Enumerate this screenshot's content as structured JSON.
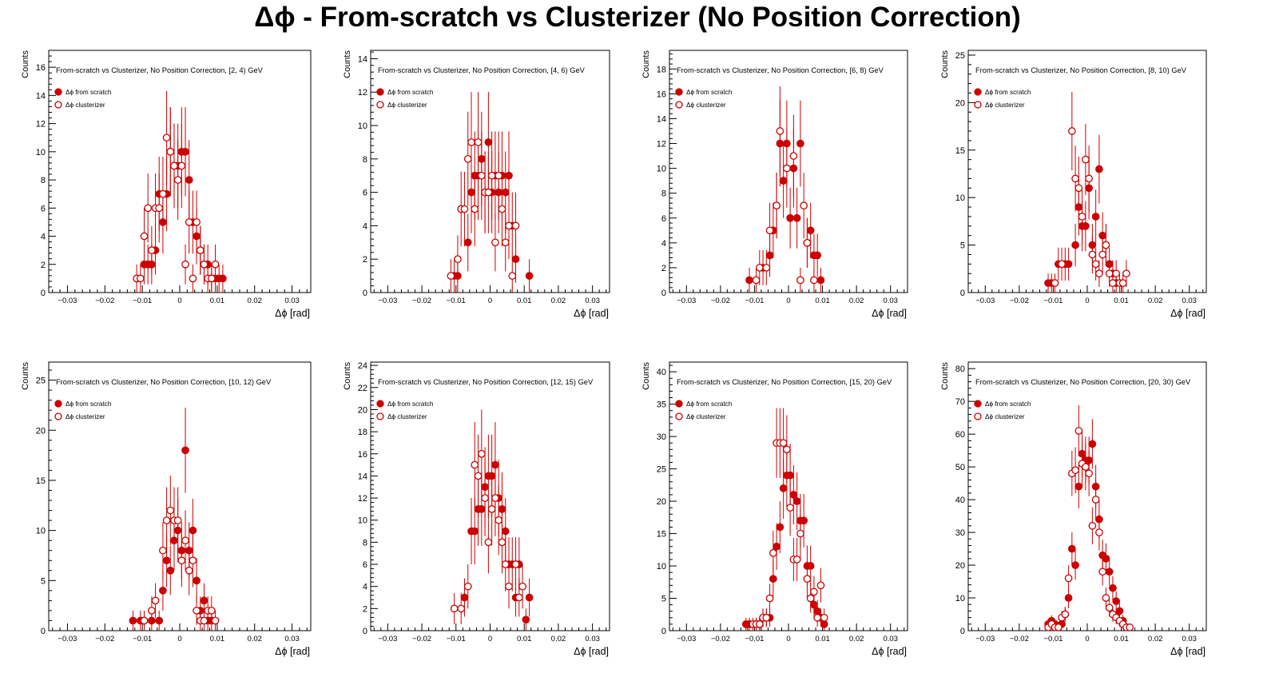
{
  "figure": {
    "title": "Δϕ  -  From-scratch vs Clusterizer  (No Position Correction)"
  },
  "chart_data": [
    {
      "type": "scatter",
      "title": "From-scratch vs Clusterizer, No Position Correction, [2, 4) GeV",
      "xlabel": "Δϕ  [rad]",
      "ylabel": "Counts",
      "xlim": [
        -0.035,
        0.035
      ],
      "ylim": [
        0,
        17.2
      ],
      "xticks": [
        -0.03,
        -0.02,
        -0.01,
        0,
        0.01,
        0.02,
        0.03
      ],
      "yticks": [
        0,
        2,
        4,
        6,
        8,
        10,
        12,
        14,
        16
      ],
      "legend": "top-left",
      "series": [
        {
          "name": "Δϕ  from scratch",
          "marker": "filled",
          "color": "#cc0000",
          "x": [
            -0.0095,
            -0.0085,
            -0.0075,
            -0.0065,
            -0.0055,
            -0.0045,
            -0.0035,
            -0.0025,
            -0.0015,
            -0.0005,
            0.0005,
            0.0015,
            0.0025,
            0.0035,
            0.0045,
            0.0055,
            0.0065,
            0.0075,
            0.0085,
            0.0095,
            0.0105,
            0.0115
          ],
          "y": [
            2,
            2,
            2,
            3,
            7,
            5,
            7,
            10,
            9,
            9,
            10,
            10,
            8,
            5,
            4,
            3,
            2,
            2,
            1,
            1,
            1,
            1
          ]
        },
        {
          "name": "Δϕ  clusterizer",
          "marker": "open",
          "color": "#cc0000",
          "x": [
            -0.0115,
            -0.0105,
            -0.0095,
            -0.0085,
            -0.0075,
            -0.0065,
            -0.0055,
            -0.0045,
            -0.0035,
            -0.0025,
            -0.0015,
            -0.0005,
            0.0005,
            0.0015,
            0.0025,
            0.0035,
            0.0045,
            0.0055,
            0.0065,
            0.0075,
            0.0085,
            0.0095
          ],
          "y": [
            1,
            1,
            4,
            6,
            3,
            6,
            6,
            7,
            11,
            10,
            9,
            8,
            9,
            2,
            5,
            1,
            5,
            3,
            2,
            1,
            1,
            2
          ]
        }
      ]
    },
    {
      "type": "scatter",
      "title": "From-scratch vs Clusterizer, No Position Correction, [4, 6) GeV",
      "xlabel": "Δϕ  [rad]",
      "ylabel": "Counts",
      "xlim": [
        -0.035,
        0.035
      ],
      "ylim": [
        0,
        14.5
      ],
      "xticks": [
        -0.03,
        -0.02,
        -0.01,
        0,
        0.01,
        0.02,
        0.03
      ],
      "yticks": [
        0,
        2,
        4,
        6,
        8,
        10,
        12,
        14
      ],
      "legend": "top-left",
      "series": [
        {
          "name": "Δϕ  from scratch",
          "marker": "filled",
          "color": "#cc0000",
          "x": [
            -0.0105,
            -0.0095,
            -0.0065,
            -0.0055,
            -0.0045,
            -0.0035,
            -0.0025,
            -0.0015,
            -0.0005,
            0.0005,
            0.0015,
            0.0025,
            0.0035,
            0.0045,
            0.0055,
            0.0065,
            0.0075,
            0.0115
          ],
          "y": [
            1,
            1,
            3,
            6,
            7,
            7,
            8,
            6,
            9,
            6,
            7,
            6,
            7,
            6,
            7,
            4,
            2,
            1
          ]
        },
        {
          "name": "Δϕ  clusterizer",
          "marker": "open",
          "color": "#cc0000",
          "x": [
            -0.0115,
            -0.0095,
            -0.0085,
            -0.0075,
            -0.0065,
            -0.0055,
            -0.0045,
            -0.0035,
            -0.0025,
            -0.0015,
            -0.0005,
            0.0005,
            0.0015,
            0.0025,
            0.0035,
            0.0045,
            0.0055,
            0.0065,
            0.0075
          ],
          "y": [
            1,
            2,
            5,
            5,
            8,
            9,
            5,
            9,
            7,
            6,
            6,
            7,
            3,
            7,
            5,
            3,
            4,
            1,
            4
          ]
        }
      ]
    },
    {
      "type": "scatter",
      "title": "From-scratch vs Clusterizer, No Position Correction, [6, 8) GeV",
      "xlabel": "Δϕ  [rad]",
      "ylabel": "Counts",
      "xlim": [
        -0.035,
        0.035
      ],
      "ylim": [
        0,
        19.5
      ],
      "xticks": [
        -0.03,
        -0.02,
        -0.01,
        0,
        0.01,
        0.02,
        0.03
      ],
      "yticks": [
        0,
        2,
        4,
        6,
        8,
        10,
        12,
        14,
        16,
        18
      ],
      "legend": "top-left",
      "series": [
        {
          "name": "Δϕ  from scratch",
          "marker": "filled",
          "color": "#cc0000",
          "x": [
            -0.0115,
            -0.0075,
            -0.0055,
            -0.0045,
            -0.0035,
            -0.0025,
            -0.0015,
            -0.0005,
            0.0005,
            0.0015,
            0.0025,
            0.0035,
            0.0055,
            0.0065,
            0.0075,
            0.0085,
            0.0095
          ],
          "y": [
            1,
            2,
            3,
            5,
            7,
            12,
            9,
            12,
            6,
            10,
            6,
            12,
            4,
            5,
            3,
            3,
            1
          ]
        },
        {
          "name": "Δϕ  clusterizer",
          "marker": "open",
          "color": "#cc0000",
          "x": [
            -0.0095,
            -0.0085,
            -0.0065,
            -0.0055,
            -0.0035,
            -0.0025,
            -0.0005,
            0.0015,
            0.0035,
            0.0045,
            0.0055,
            0.0075
          ],
          "y": [
            1,
            2,
            2,
            5,
            7,
            13,
            10,
            11,
            1,
            7,
            4,
            1
          ]
        }
      ]
    },
    {
      "type": "scatter",
      "title": "From-scratch vs Clusterizer, No Position Correction, [8, 10) GeV",
      "xlabel": "Δϕ  [rad]",
      "ylabel": "Counts",
      "xlim": [
        -0.035,
        0.035
      ],
      "ylim": [
        0,
        25.5
      ],
      "xticks": [
        -0.03,
        -0.02,
        -0.01,
        0,
        0.01,
        0.02,
        0.03
      ],
      "yticks": [
        0,
        5,
        10,
        15,
        20,
        25
      ],
      "legend": "top-left",
      "series": [
        {
          "name": "Δϕ  from scratch",
          "marker": "filled",
          "color": "#cc0000",
          "x": [
            -0.0115,
            -0.0105,
            -0.0085,
            -0.0065,
            -0.0055,
            -0.0035,
            -0.0025,
            -0.0015,
            -0.0005,
            0.0005,
            0.0015,
            0.0025,
            0.0035,
            0.0045,
            0.0055,
            0.0065,
            0.0075,
            0.0085
          ],
          "y": [
            1,
            1,
            3,
            3,
            3,
            5,
            9,
            7,
            7,
            11,
            5,
            8,
            13,
            6,
            5,
            3,
            2,
            1
          ]
        },
        {
          "name": "Δϕ  clusterizer",
          "marker": "open",
          "color": "#cc0000",
          "x": [
            -0.0095,
            -0.0075,
            -0.0045,
            -0.0035,
            -0.0025,
            -0.0015,
            -0.0005,
            0.0005,
            0.0015,
            0.0025,
            0.0035,
            0.0045,
            0.0055,
            0.0065,
            0.0075,
            0.0085,
            0.0095,
            0.0105,
            0.0115
          ],
          "y": [
            1,
            3,
            17,
            12,
            11,
            8,
            14,
            12,
            4,
            3,
            2,
            4,
            5,
            2,
            1,
            2,
            1,
            1,
            2
          ]
        }
      ]
    },
    {
      "type": "scatter",
      "title": "From-scratch vs Clusterizer, No Position Correction, [10, 12) GeV",
      "xlabel": "Δϕ  [rad]",
      "ylabel": "Counts",
      "xlim": [
        -0.035,
        0.035
      ],
      "ylim": [
        0,
        26.8
      ],
      "xticks": [
        -0.03,
        -0.02,
        -0.01,
        0,
        0.01,
        0.02,
        0.03
      ],
      "yticks": [
        0,
        5,
        10,
        15,
        20,
        25
      ],
      "legend": "top-left",
      "series": [
        {
          "name": "Δϕ  from scratch",
          "marker": "filled",
          "color": "#cc0000",
          "x": [
            -0.0125,
            -0.0105,
            -0.0095,
            -0.0075,
            -0.0055,
            -0.0045,
            -0.0035,
            -0.0025,
            -0.0015,
            -0.0005,
            0.0005,
            0.0015,
            0.0025,
            0.0035,
            0.0045,
            0.0055,
            0.0065,
            0.0075,
            0.0085
          ],
          "y": [
            1,
            1,
            1,
            1,
            1,
            4,
            7,
            6,
            9,
            10,
            8,
            18,
            8,
            10,
            5,
            2,
            3,
            1,
            1
          ]
        },
        {
          "name": "Δϕ  clusterizer",
          "marker": "open",
          "color": "#cc0000",
          "x": [
            -0.0095,
            -0.0075,
            -0.0065,
            -0.0045,
            -0.0035,
            -0.0025,
            -0.0015,
            -0.0005,
            0.0005,
            0.0015,
            0.0025,
            0.0035,
            0.0045,
            0.0055,
            0.0065,
            0.0075,
            0.0085,
            0.0095
          ],
          "y": [
            1,
            2,
            3,
            8,
            11,
            12,
            11,
            11,
            7,
            9,
            6,
            7,
            2,
            1,
            1,
            2,
            2,
            1
          ]
        }
      ]
    },
    {
      "type": "scatter",
      "title": "From-scratch vs Clusterizer, No Position Correction, [12, 15) GeV",
      "xlabel": "Δϕ  [rad]",
      "ylabel": "Counts",
      "xlim": [
        -0.035,
        0.035
      ],
      "ylim": [
        0,
        24.3
      ],
      "xticks": [
        -0.03,
        -0.02,
        -0.01,
        0,
        0.01,
        0.02,
        0.03
      ],
      "yticks": [
        0,
        2,
        4,
        6,
        8,
        10,
        12,
        14,
        16,
        18,
        20,
        22,
        24
      ],
      "legend": "top-left",
      "series": [
        {
          "name": "Δϕ  from scratch",
          "marker": "filled",
          "color": "#cc0000",
          "x": [
            -0.0075,
            -0.0055,
            -0.0045,
            -0.0035,
            -0.0025,
            -0.0015,
            -0.0005,
            0.0005,
            0.0015,
            0.0025,
            0.0035,
            0.0045,
            0.0055,
            0.0065,
            0.0075,
            0.0085,
            0.0105,
            0.0115
          ],
          "y": [
            3,
            9,
            9,
            11,
            11,
            13,
            14,
            14,
            15,
            12,
            11,
            9,
            6,
            6,
            3,
            6,
            1,
            3
          ]
        },
        {
          "name": "Δϕ  clusterizer",
          "marker": "open",
          "color": "#cc0000",
          "x": [
            -0.0105,
            -0.0085,
            -0.0065,
            -0.0045,
            -0.0035,
            -0.0025,
            -0.0015,
            -0.0005,
            0.0005,
            0.0015,
            0.0025,
            0.0035,
            0.0045,
            0.0055,
            0.0075,
            0.0085,
            0.0095
          ],
          "y": [
            2,
            2,
            4,
            15,
            14,
            16,
            12,
            8,
            11,
            12,
            10,
            8,
            6,
            4,
            6,
            3,
            4
          ]
        }
      ]
    },
    {
      "type": "scatter",
      "title": "From-scratch vs Clusterizer, No Position Correction, [15, 20) GeV",
      "xlabel": "Δϕ  [rad]",
      "ylabel": "Counts",
      "xlim": [
        -0.035,
        0.035
      ],
      "ylim": [
        0,
        41.5
      ],
      "xticks": [
        -0.03,
        -0.02,
        -0.01,
        0,
        0.01,
        0.02,
        0.03
      ],
      "yticks": [
        0,
        5,
        10,
        15,
        20,
        25,
        30,
        35,
        40
      ],
      "legend": "top-left",
      "series": [
        {
          "name": "Δϕ  from scratch",
          "marker": "filled",
          "color": "#cc0000",
          "x": [
            -0.0125,
            -0.0115,
            -0.0095,
            -0.0085,
            -0.0075,
            -0.0065,
            -0.0055,
            -0.0045,
            -0.0035,
            -0.0025,
            -0.0015,
            -0.0005,
            0.0005,
            0.0015,
            0.0025,
            0.0035,
            0.0045,
            0.0055,
            0.0065,
            0.0075,
            0.0085,
            0.0095,
            0.0105
          ],
          "y": [
            1,
            1,
            1,
            1,
            2,
            2,
            2,
            8,
            13,
            16,
            22,
            24,
            24,
            21,
            20,
            17,
            17,
            10,
            10,
            4,
            3,
            2,
            1
          ]
        },
        {
          "name": "Δϕ  clusterizer",
          "marker": "open",
          "color": "#cc0000",
          "x": [
            -0.0105,
            -0.0095,
            -0.0085,
            -0.0075,
            -0.0065,
            -0.0055,
            -0.0045,
            -0.0035,
            -0.0025,
            -0.0015,
            -0.0005,
            0.0005,
            0.0015,
            0.0025,
            0.0035,
            0.0055,
            0.0065,
            0.0075,
            0.0085,
            0.0095,
            0.0105
          ],
          "y": [
            1,
            1,
            1,
            2,
            2,
            5,
            12,
            29,
            29,
            29,
            28,
            19,
            11,
            11,
            15,
            8,
            5,
            6,
            2,
            7,
            2
          ]
        }
      ]
    },
    {
      "type": "scatter",
      "title": "From-scratch vs Clusterizer, No Position Correction, [20, 30) GeV",
      "xlabel": "Δϕ  [rad]",
      "ylabel": "Counts",
      "xlim": [
        -0.035,
        0.035
      ],
      "ylim": [
        0,
        82
      ],
      "xticks": [
        -0.03,
        -0.02,
        -0.01,
        0,
        0.01,
        0.02,
        0.03
      ],
      "yticks": [
        0,
        10,
        20,
        30,
        40,
        50,
        60,
        70,
        80
      ],
      "legend": "top-left",
      "series": [
        {
          "name": "Δϕ  from scratch",
          "marker": "filled",
          "color": "#cc0000",
          "x": [
            -0.0115,
            -0.0105,
            -0.0095,
            -0.0085,
            -0.0075,
            -0.0065,
            -0.0055,
            -0.0045,
            -0.0035,
            -0.0025,
            -0.0015,
            -0.0005,
            0.0005,
            0.0015,
            0.0025,
            0.0035,
            0.0045,
            0.0055,
            0.0065,
            0.0075,
            0.0085,
            0.0095,
            0.0105,
            0.0115
          ],
          "y": [
            2,
            3,
            2,
            1,
            2,
            5,
            10,
            25,
            20,
            44,
            54,
            52,
            52,
            57,
            44,
            34,
            23,
            22,
            18,
            13,
            9,
            6,
            3,
            1
          ]
        },
        {
          "name": "Δϕ  clusterizer",
          "marker": "open",
          "color": "#cc0000",
          "x": [
            -0.0115,
            -0.0105,
            -0.0095,
            -0.0085,
            -0.0075,
            -0.0065,
            -0.0055,
            -0.0045,
            -0.0035,
            -0.0025,
            -0.0015,
            -0.0005,
            0.0005,
            0.0015,
            0.0025,
            0.0035,
            0.0045,
            0.0055,
            0.0065,
            0.0075,
            0.0085,
            0.0095,
            0.0105,
            0.0115,
            0.0125
          ],
          "y": [
            1,
            2,
            1,
            1,
            4,
            5,
            16,
            48,
            49,
            61,
            51,
            50,
            48,
            32,
            40,
            30,
            18,
            10,
            7,
            5,
            4,
            3,
            2,
            1,
            1
          ]
        }
      ]
    }
  ]
}
